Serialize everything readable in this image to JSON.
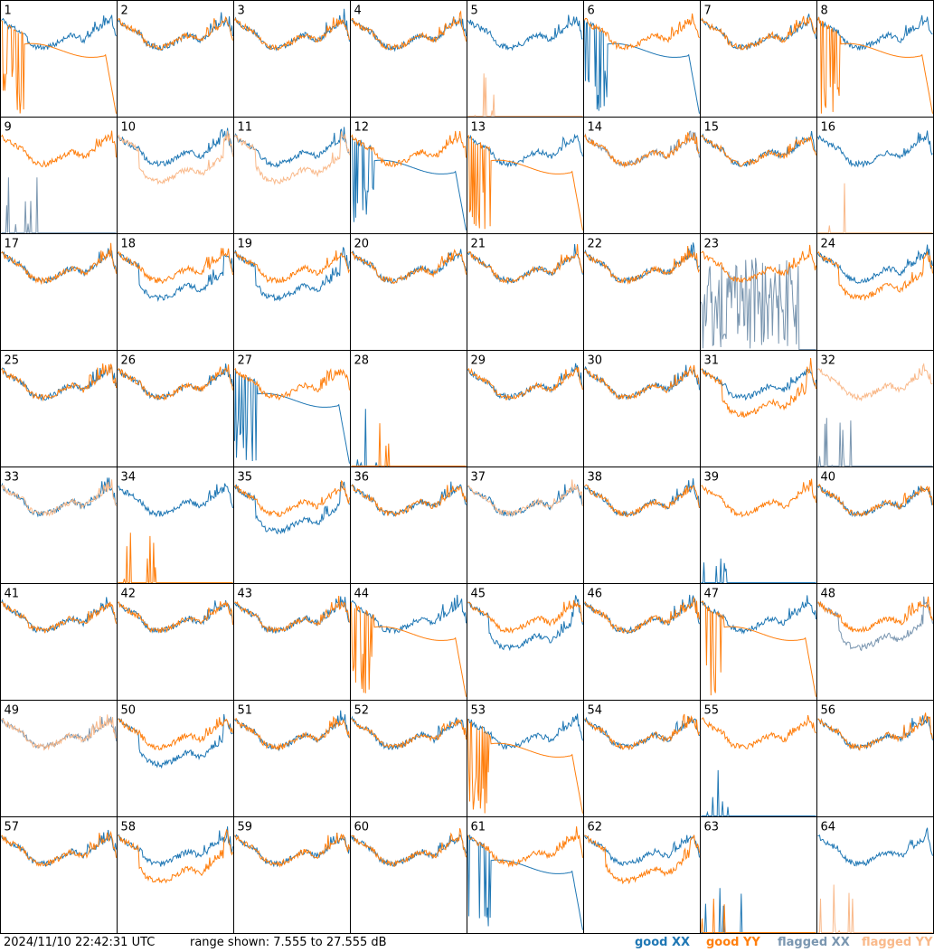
{
  "chart_data": {
    "type": "line",
    "title": "",
    "grid_rows": 8,
    "grid_cols": 8,
    "footer": {
      "timestamp": "2024/11/10 22:42:31 UTC",
      "range_text": "range shown: 7.555 to 27.555 dB"
    },
    "ylim_db": [
      7.555,
      27.555
    ],
    "legend": [
      {
        "id": "good_xx",
        "label": "good XX",
        "color": "#1f77b4"
      },
      {
        "id": "good_yy",
        "label": "good YY",
        "color": "#ff7f0e"
      },
      {
        "id": "flagged_xx",
        "label": "flagged XX",
        "color": "#7a96b0"
      },
      {
        "id": "flagged_yy",
        "label": "flagged YY",
        "color": "#f9b98a"
      }
    ],
    "legend_placement": "bottom-right",
    "typical_spectrum_db": [
      24.5,
      23.5,
      23.0,
      22.5,
      22.0,
      20.5,
      19.8,
      19.6,
      19.5,
      19.8,
      20.2,
      20.8,
      21.4,
      21.7,
      21.3,
      20.8,
      21.3,
      22.2,
      23.0,
      23.6,
      24.2,
      21.0
    ],
    "panels": [
      {
        "label": "1",
        "xx": "normal",
        "yy": "broken",
        "xx_flagged": false,
        "yy_flagged": false
      },
      {
        "label": "2",
        "xx": "normal",
        "yy": "normal",
        "xx_flagged": false,
        "yy_flagged": false
      },
      {
        "label": "3",
        "xx": "normal",
        "yy": "normal",
        "xx_flagged": false,
        "yy_flagged": false
      },
      {
        "label": "4",
        "xx": "normal",
        "yy": "normal",
        "xx_flagged": false,
        "yy_flagged": false
      },
      {
        "label": "5",
        "xx": "normal",
        "yy": "dead",
        "xx_flagged": false,
        "yy_flagged": true
      },
      {
        "label": "6",
        "xx": "broken",
        "yy": "normal",
        "xx_flagged": false,
        "yy_flagged": false
      },
      {
        "label": "7",
        "xx": "normal",
        "yy": "normal",
        "xx_flagged": false,
        "yy_flagged": false
      },
      {
        "label": "8",
        "xx": "normal",
        "yy": "broken",
        "xx_flagged": false,
        "yy_flagged": false
      },
      {
        "label": "9",
        "xx": "dead",
        "yy": "normal",
        "xx_flagged": true,
        "yy_flagged": false
      },
      {
        "label": "10",
        "xx": "normal",
        "yy": "low",
        "xx_flagged": false,
        "yy_flagged": true
      },
      {
        "label": "11",
        "xx": "normal",
        "yy": "low",
        "xx_flagged": false,
        "yy_flagged": true
      },
      {
        "label": "12",
        "xx": "broken",
        "yy": "normal",
        "xx_flagged": false,
        "yy_flagged": false
      },
      {
        "label": "13",
        "xx": "normal",
        "yy": "broken",
        "xx_flagged": false,
        "yy_flagged": false
      },
      {
        "label": "14",
        "xx": "normal",
        "yy": "normal",
        "xx_flagged": true,
        "yy_flagged": false
      },
      {
        "label": "15",
        "xx": "normal",
        "yy": "normal",
        "xx_flagged": false,
        "yy_flagged": false
      },
      {
        "label": "16",
        "xx": "normal",
        "yy": "dead",
        "xx_flagged": false,
        "yy_flagged": true
      },
      {
        "label": "17",
        "xx": "normal",
        "yy": "normal",
        "xx_flagged": false,
        "yy_flagged": false
      },
      {
        "label": "18",
        "xx": "low",
        "yy": "normal",
        "xx_flagged": false,
        "yy_flagged": false
      },
      {
        "label": "19",
        "xx": "low",
        "yy": "normal",
        "xx_flagged": false,
        "yy_flagged": false
      },
      {
        "label": "20",
        "xx": "normal",
        "yy": "normal",
        "xx_flagged": false,
        "yy_flagged": false
      },
      {
        "label": "21",
        "xx": "normal",
        "yy": "normal",
        "xx_flagged": false,
        "yy_flagged": false
      },
      {
        "label": "22",
        "xx": "normal",
        "yy": "normal",
        "xx_flagged": false,
        "yy_flagged": false
      },
      {
        "label": "23",
        "xx": "noise",
        "yy": "normal",
        "xx_flagged": true,
        "yy_flagged": false
      },
      {
        "label": "24",
        "xx": "normal",
        "yy": "low",
        "xx_flagged": false,
        "yy_flagged": false
      },
      {
        "label": "25",
        "xx": "normal",
        "yy": "normal",
        "xx_flagged": false,
        "yy_flagged": false
      },
      {
        "label": "26",
        "xx": "normal",
        "yy": "normal",
        "xx_flagged": false,
        "yy_flagged": false
      },
      {
        "label": "27",
        "xx": "broken",
        "yy": "normal",
        "xx_flagged": false,
        "yy_flagged": false
      },
      {
        "label": "28",
        "xx": "dead",
        "yy": "dead",
        "xx_flagged": false,
        "yy_flagged": false
      },
      {
        "label": "29",
        "xx": "normal",
        "yy": "normal",
        "xx_flagged": false,
        "yy_flagged": false
      },
      {
        "label": "30",
        "xx": "normal",
        "yy": "normal",
        "xx_flagged": false,
        "yy_flagged": false
      },
      {
        "label": "31",
        "xx": "normal",
        "yy": "low",
        "xx_flagged": false,
        "yy_flagged": false
      },
      {
        "label": "32",
        "xx": "dead",
        "yy": "normal",
        "xx_flagged": true,
        "yy_flagged": true
      },
      {
        "label": "33",
        "xx": "normal",
        "yy": "normal",
        "xx_flagged": false,
        "yy_flagged": true
      },
      {
        "label": "34",
        "xx": "normal",
        "yy": "dead",
        "xx_flagged": false,
        "yy_flagged": false
      },
      {
        "label": "35",
        "xx": "low",
        "yy": "normal",
        "xx_flagged": false,
        "yy_flagged": false
      },
      {
        "label": "36",
        "xx": "normal",
        "yy": "normal",
        "xx_flagged": false,
        "yy_flagged": false
      },
      {
        "label": "37",
        "xx": "normal",
        "yy": "normal",
        "xx_flagged": false,
        "yy_flagged": true
      },
      {
        "label": "38",
        "xx": "normal",
        "yy": "normal",
        "xx_flagged": false,
        "yy_flagged": false
      },
      {
        "label": "39",
        "xx": "dead",
        "yy": "normal",
        "xx_flagged": false,
        "yy_flagged": false
      },
      {
        "label": "40",
        "xx": "normal",
        "yy": "normal",
        "xx_flagged": false,
        "yy_flagged": false
      },
      {
        "label": "41",
        "xx": "normal",
        "yy": "normal",
        "xx_flagged": false,
        "yy_flagged": false
      },
      {
        "label": "42",
        "xx": "normal",
        "yy": "normal",
        "xx_flagged": false,
        "yy_flagged": false
      },
      {
        "label": "43",
        "xx": "normal",
        "yy": "normal",
        "xx_flagged": false,
        "yy_flagged": false
      },
      {
        "label": "44",
        "xx": "normal",
        "yy": "broken",
        "xx_flagged": false,
        "yy_flagged": false
      },
      {
        "label": "45",
        "xx": "low",
        "yy": "normal",
        "xx_flagged": false,
        "yy_flagged": false
      },
      {
        "label": "46",
        "xx": "normal",
        "yy": "normal",
        "xx_flagged": false,
        "yy_flagged": false
      },
      {
        "label": "47",
        "xx": "normal",
        "yy": "broken",
        "xx_flagged": false,
        "yy_flagged": false
      },
      {
        "label": "48",
        "xx": "low",
        "yy": "normal",
        "xx_flagged": true,
        "yy_flagged": false
      },
      {
        "label": "49",
        "xx": "normal",
        "yy": "normal",
        "xx_flagged": true,
        "yy_flagged": true
      },
      {
        "label": "50",
        "xx": "low",
        "yy": "normal",
        "xx_flagged": false,
        "yy_flagged": false
      },
      {
        "label": "51",
        "xx": "normal",
        "yy": "normal",
        "xx_flagged": false,
        "yy_flagged": false
      },
      {
        "label": "52",
        "xx": "normal",
        "yy": "normal",
        "xx_flagged": false,
        "yy_flagged": false
      },
      {
        "label": "53",
        "xx": "normal",
        "yy": "broken",
        "xx_flagged": false,
        "yy_flagged": false
      },
      {
        "label": "54",
        "xx": "normal",
        "yy": "normal",
        "xx_flagged": false,
        "yy_flagged": false
      },
      {
        "label": "55",
        "xx": "dead",
        "yy": "normal",
        "xx_flagged": false,
        "yy_flagged": false
      },
      {
        "label": "56",
        "xx": "normal",
        "yy": "normal",
        "xx_flagged": false,
        "yy_flagged": false
      },
      {
        "label": "57",
        "xx": "normal",
        "yy": "normal",
        "xx_flagged": false,
        "yy_flagged": false
      },
      {
        "label": "58",
        "xx": "normal",
        "yy": "low",
        "xx_flagged": false,
        "yy_flagged": false
      },
      {
        "label": "59",
        "xx": "normal",
        "yy": "normal",
        "xx_flagged": false,
        "yy_flagged": false
      },
      {
        "label": "60",
        "xx": "normal",
        "yy": "normal",
        "xx_flagged": false,
        "yy_flagged": false
      },
      {
        "label": "61",
        "xx": "broken",
        "yy": "normal",
        "xx_flagged": false,
        "yy_flagged": false
      },
      {
        "label": "62",
        "xx": "normal",
        "yy": "low",
        "xx_flagged": false,
        "yy_flagged": false
      },
      {
        "label": "63",
        "xx": "dead",
        "yy": "dead",
        "xx_flagged": false,
        "yy_flagged": false
      },
      {
        "label": "64",
        "xx": "normal",
        "yy": "dead",
        "xx_flagged": false,
        "yy_flagged": true
      }
    ]
  }
}
